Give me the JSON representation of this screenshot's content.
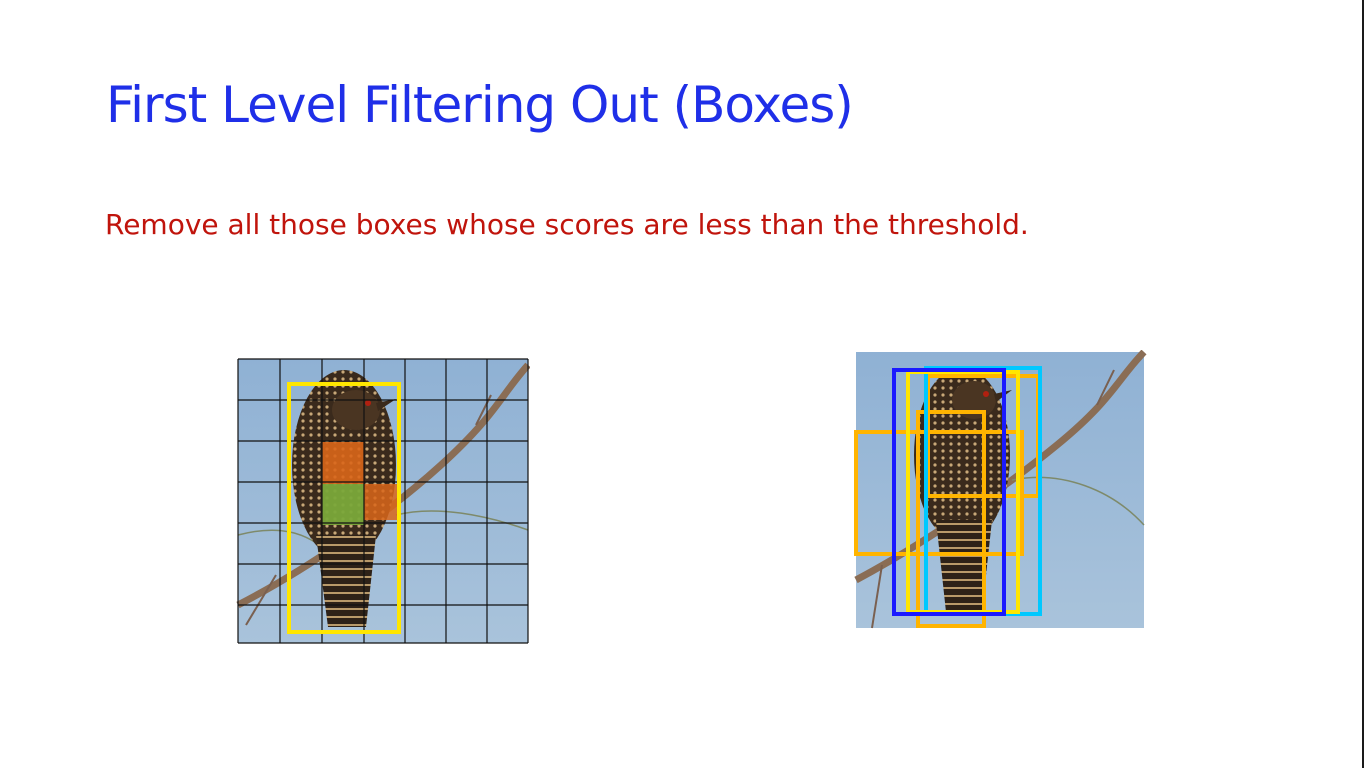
{
  "slide": {
    "title": "First Level Filtering Out (Boxes)",
    "subtitle": "Remove all those boxes whose scores are less than the threshold.",
    "title_color": "#1f2fe8",
    "subtitle_color": "#c0140c"
  },
  "figures": {
    "left": {
      "grid": "7x7",
      "highlight_colors": {
        "orange": "#d9661a",
        "green": "#7aa83a"
      },
      "box_color": "#ffe600"
    },
    "right": {
      "box_colors": [
        "#ffb400",
        "#00c8ff",
        "#1a1aff",
        "#ffe600"
      ]
    }
  }
}
